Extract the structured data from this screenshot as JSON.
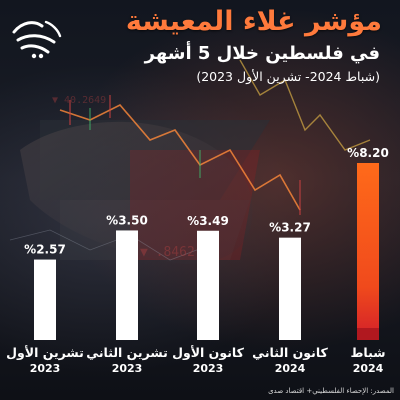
{
  "header": {
    "title": "مؤشر غلاء المعيشة",
    "subtitle": "في فلسطين خلال 5 أشهر",
    "period": "(شباط 2024- تشرين الأول 2023)"
  },
  "logo": {
    "name": "brand-logo"
  },
  "source": "المصدر: الإحصاء الفلسطيني+ اقتصاد صدى",
  "colors": {
    "bar_white": "#ffffff",
    "bar_highlight_top": "#ff6a1a",
    "bar_highlight_bottom": "#d21f2a",
    "title": "#ff7a3c"
  },
  "chart_data": {
    "type": "bar",
    "categories": [
      {
        "month": "تشرين الأول",
        "year": "2023"
      },
      {
        "month": "تشرين الثاني",
        "year": "2023"
      },
      {
        "month": "كانون الأول",
        "year": "2023"
      },
      {
        "month": "كانون الثاني",
        "year": "2024"
      },
      {
        "month": "شباط",
        "year": "2024"
      }
    ],
    "values": [
      2.57,
      3.5,
      3.49,
      3.27,
      8.2
    ],
    "value_labels": [
      "%2.57",
      "%3.50",
      "%3.49",
      "%3.27",
      "%8.20"
    ],
    "highlight_index": 4,
    "ylim": [
      0,
      8.2
    ]
  }
}
